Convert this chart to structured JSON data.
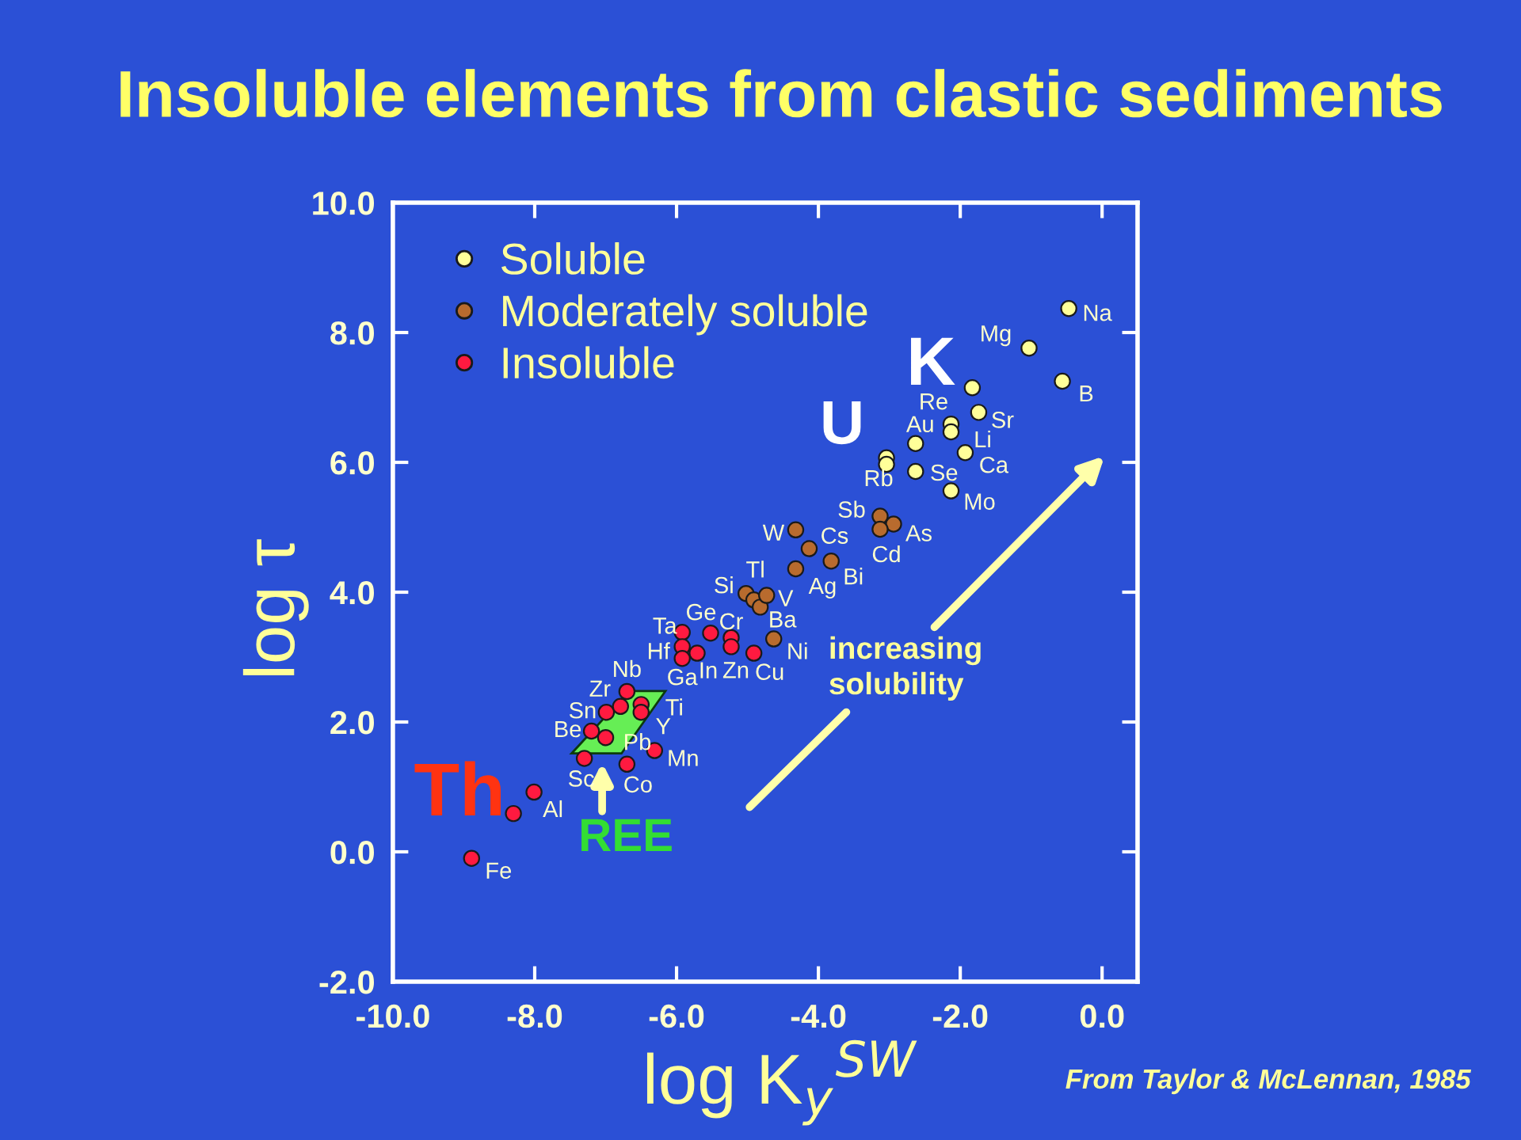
{
  "chart_data": {
    "type": "scatter",
    "title": "Insoluble elements from clastic sediments",
    "xlabel": "log K$_{y}$$^{SW}$",
    "ylabel": "log τ",
    "xlim": [
      -10,
      0.5
    ],
    "ylim": [
      -2,
      10
    ],
    "xticks": [
      {
        "value": -10,
        "label": "-10.0"
      },
      {
        "value": -8,
        "label": "-8.0"
      },
      {
        "value": -6,
        "label": "-6.0"
      },
      {
        "value": -4,
        "label": "-4.0"
      },
      {
        "value": -2,
        "label": "-2.0"
      },
      {
        "value": 0,
        "label": "0.0"
      }
    ],
    "yticks": [
      {
        "value": -2,
        "label": "-2.0"
      },
      {
        "value": 0,
        "label": "0.0"
      },
      {
        "value": 2,
        "label": "2.0"
      },
      {
        "value": 4,
        "label": "4.0"
      },
      {
        "value": 6,
        "label": "6.0"
      },
      {
        "value": 8,
        "label": "8.0"
      },
      {
        "value": 10,
        "label": "10.0"
      }
    ],
    "legend": "top left",
    "marker": "circle",
    "series": [
      {
        "name": "Soluble",
        "color": "#ffff99",
        "x": [
          -0.47,
          -1.03,
          -0.56,
          -1.83,
          -1.74,
          -2.13,
          -2.13,
          -1.93,
          -2.63,
          -3.04,
          -3.04,
          -2.63,
          -2.13
        ],
        "values": [
          8.37,
          7.76,
          7.25,
          7.15,
          6.77,
          6.59,
          6.47,
          6.15,
          6.29,
          6.07,
          5.97,
          5.86,
          5.56
        ]
      },
      {
        "name": "Moderately soluble",
        "color": "#b86b2e",
        "x": [
          -4.32,
          -4.13,
          -4.32,
          -3.82,
          -3.13,
          -2.94,
          -3.13,
          -5.02,
          -4.91,
          -4.82,
          -4.73,
          -4.63
        ],
        "values": [
          4.96,
          4.67,
          4.36,
          4.48,
          5.17,
          5.05,
          4.97,
          3.98,
          3.88,
          3.77,
          3.95,
          3.28
        ]
      },
      {
        "name": "Insoluble",
        "color": "#ff1a40",
        "x": [
          -8.89,
          -8.3,
          -8.01,
          -7.3,
          -7.2,
          -7.0,
          -6.99,
          -6.79,
          -6.7,
          -6.5,
          -6.5,
          -6.7,
          -6.31,
          -5.92,
          -5.92,
          -5.92,
          -5.71,
          -5.52,
          -5.23,
          -5.23,
          -4.91
        ],
        "values": [
          -0.1,
          0.59,
          0.92,
          1.44,
          1.86,
          1.76,
          2.15,
          2.24,
          2.47,
          2.27,
          2.15,
          1.35,
          1.56,
          3.38,
          3.16,
          2.98,
          3.06,
          3.37,
          3.3,
          3.16,
          3.06
        ]
      }
    ],
    "annotations": [
      "From Taylor & McLennan, 1985",
      "REE",
      "increasing\nsolubility",
      {
        "text": "Th",
        "x": -8.3,
        "y": 0.59
      },
      {
        "text": "U",
        "x": -3.04,
        "y": 6.07
      },
      {
        "text": "K",
        "x": -1.83,
        "y": 7.15
      },
      {
        "text": "Fe",
        "x": -8.89,
        "y": -0.1
      },
      {
        "text": "Al",
        "x": -8.01,
        "y": 0.92
      },
      {
        "text": "Sc",
        "x": -7.3,
        "y": 1.44
      },
      {
        "text": "Co",
        "x": -6.7,
        "y": 1.35
      },
      {
        "text": "Mn",
        "x": -6.31,
        "y": 1.56
      },
      {
        "text": "Pb",
        "x": -7.0,
        "y": 1.76
      },
      {
        "text": "Y",
        "x": -6.5,
        "y": 2.15
      },
      {
        "text": "Ti",
        "x": -6.5,
        "y": 2.27
      },
      {
        "text": "Be",
        "x": -7.2,
        "y": 1.86
      },
      {
        "text": "Sn",
        "x": -6.99,
        "y": 2.15
      },
      {
        "text": "Zr",
        "x": -6.79,
        "y": 2.24
      },
      {
        "text": "Nb",
        "x": -6.7,
        "y": 2.47
      },
      {
        "text": "Ga",
        "x": -5.92,
        "y": 2.98
      },
      {
        "text": "Hf",
        "x": -5.92,
        "y": 3.16
      },
      {
        "text": "Ta",
        "x": -5.92,
        "y": 3.38
      },
      {
        "text": "Ge",
        "x": -5.52,
        "y": 3.37
      },
      {
        "text": "Cr",
        "x": -5.23,
        "y": 3.3
      },
      {
        "text": "In",
        "x": -5.71,
        "y": 3.06
      },
      {
        "text": "Zn",
        "x": -5.23,
        "y": 3.16
      },
      {
        "text": "Cu",
        "x": -4.91,
        "y": 3.06
      },
      {
        "text": "Ni",
        "x": -4.63,
        "y": 3.28
      },
      {
        "text": "Ba",
        "x": -4.82,
        "y": 3.77
      },
      {
        "text": "V",
        "x": -4.73,
        "y": 3.95
      },
      {
        "text": "Si",
        "x": -5.02,
        "y": 3.98
      },
      {
        "text": "Tl",
        "x": -4.91,
        "y": 3.88
      },
      {
        "text": "Ag",
        "x": -4.32,
        "y": 4.36
      },
      {
        "text": "Bi",
        "x": -3.82,
        "y": 4.48
      },
      {
        "text": "W",
        "x": -4.32,
        "y": 4.96
      },
      {
        "text": "Cs",
        "x": -4.13,
        "y": 4.67
      },
      {
        "text": "Cd",
        "x": -3.13,
        "y": 4.97
      },
      {
        "text": "As",
        "x": -2.94,
        "y": 5.05
      },
      {
        "text": "Sb",
        "x": -3.13,
        "y": 5.17
      },
      {
        "text": "Na",
        "x": -0.47,
        "y": 8.37
      },
      {
        "text": "Mg",
        "x": -1.03,
        "y": 7.76
      },
      {
        "text": "B",
        "x": -0.56,
        "y": 7.25
      },
      {
        "text": "Re",
        "x": -2.13,
        "y": 6.59
      },
      {
        "text": "Au",
        "x": -2.63,
        "y": 6.29
      },
      {
        "text": "Sr",
        "x": -1.74,
        "y": 6.77
      },
      {
        "text": "Li",
        "x": -2.13,
        "y": 6.47
      },
      {
        "text": "Ca",
        "x": -1.93,
        "y": 6.15
      },
      {
        "text": "Rb",
        "x": -3.04,
        "y": 5.97
      },
      {
        "text": "Se",
        "x": -2.63,
        "y": 5.86
      },
      {
        "text": "Mo",
        "x": -2.13,
        "y": 5.56
      }
    ]
  }
}
